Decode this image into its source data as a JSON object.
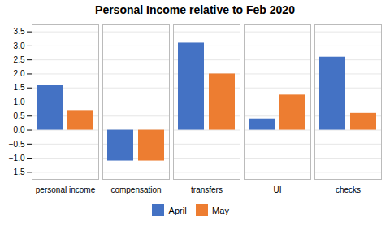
{
  "chart_data": {
    "type": "bar",
    "title": "Personal Income relative to Feb 2020",
    "categories": [
      "personal income",
      "compensation",
      "transfers",
      "UI",
      "checks"
    ],
    "series": [
      {
        "name": "April",
        "color": "#4472C4",
        "values": [
          1.6,
          -1.1,
          3.1,
          0.4,
          2.6
        ]
      },
      {
        "name": "May",
        "color": "#ED7D31",
        "values": [
          0.7,
          -1.1,
          2.0,
          1.25,
          0.6
        ]
      }
    ],
    "ylim": [
      -1.75,
      3.75
    ],
    "yticks": [
      -1.5,
      {
        "value": -1.0,
        "label": "−1.0"
      },
      -0.5,
      {
        "value": 0.0,
        "label": "0.0"
      },
      0.5,
      {
        "value": 1.0,
        "label": "1.0"
      },
      1.5,
      {
        "value": 2.0,
        "label": "2.0"
      },
      2.5,
      {
        "value": 3.0,
        "label": "3.0"
      },
      3.5
    ],
    "grid": true,
    "legend": "bottom"
  }
}
